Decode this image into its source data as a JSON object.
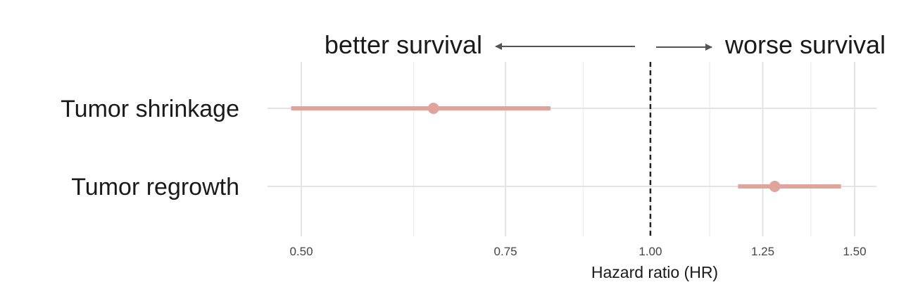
{
  "chart_data": {
    "type": "scatter",
    "subtype": "forest-plot",
    "title": "",
    "xlabel": "Hazard ratio (HR)",
    "ylabel": "",
    "x_scale": "log",
    "xlim": [
      0.485,
      1.55
    ],
    "x_ticks": [
      0.5,
      0.75,
      1.0,
      1.25,
      1.5
    ],
    "x_tick_labels": [
      "0.50",
      "0.75",
      "1.00",
      "1.25",
      "1.50"
    ],
    "x_minor_gridlines": [
      0.625,
      0.875,
      1.125,
      1.375
    ],
    "reference_line": 1.0,
    "grid": true,
    "legend": "none",
    "categories": [
      "Tumor shrinkage",
      "Tumor regrowth"
    ],
    "estimates": [
      {
        "label": "Tumor shrinkage",
        "hr": 0.65,
        "ci_low": 0.49,
        "ci_high": 0.82
      },
      {
        "label": "Tumor regrowth",
        "hr": 1.28,
        "ci_low": 1.19,
        "ci_high": 1.46
      }
    ],
    "annotations": {
      "left": "better survival",
      "right": "worse survival"
    },
    "colors": {
      "estimate": "#e1a49b",
      "grid_major": "#e3e3e3",
      "grid_minor": "#efefef",
      "reference": "#222222",
      "arrow": "#555555"
    }
  }
}
